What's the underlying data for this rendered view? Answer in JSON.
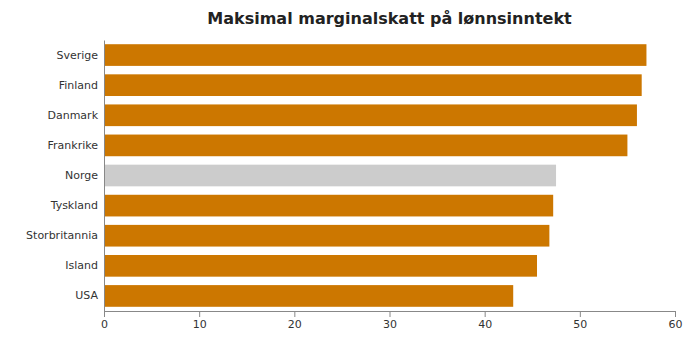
{
  "chart_data": {
    "type": "bar",
    "orientation": "horizontal",
    "title": "Maksimal marginalskatt på lønnsinntekt",
    "categories": [
      "Sverige",
      "Finland",
      "Danmark",
      "Frankrike",
      "Norge",
      "Tyskland",
      "Storbritannia",
      "Island",
      "USA"
    ],
    "values": [
      57.0,
      56.5,
      56.0,
      55.0,
      47.5,
      47.2,
      46.8,
      45.5,
      43.0
    ],
    "colors": [
      "#CC7700",
      "#CC7700",
      "#CC7700",
      "#CC7700",
      "#CCCCCC",
      "#CC7700",
      "#CC7700",
      "#CC7700",
      "#CC7700"
    ],
    "xlim": [
      0,
      60
    ],
    "xticks": [
      0,
      10,
      20,
      30,
      40,
      50,
      60
    ],
    "grid": false
  }
}
